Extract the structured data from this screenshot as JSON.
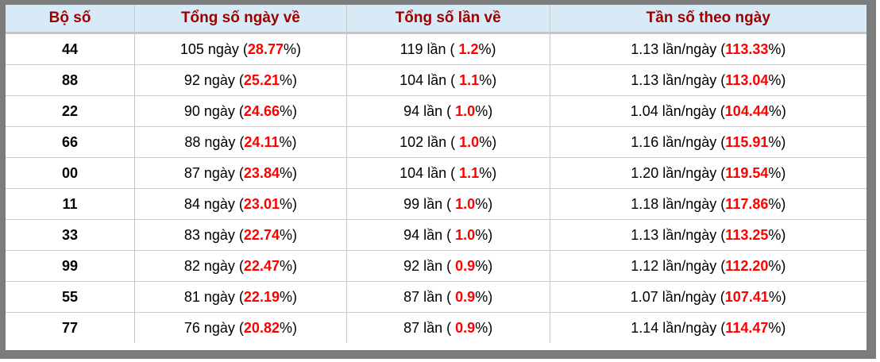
{
  "table": {
    "headers": [
      "Bộ số",
      "Tổng số ngày về",
      "Tổng số lần về",
      "Tần số theo ngày"
    ],
    "format": {
      "pct_prefix": " (",
      "pct_suffix": "%)"
    },
    "rows": [
      {
        "pair": "44",
        "days": "105 ngày",
        "days_pct": "28.77",
        "times": "119 lần",
        "times_pct": " 1.2",
        "freq": "1.13 lần/ngày",
        "freq_pct": "113.33"
      },
      {
        "pair": "88",
        "days": "92 ngày",
        "days_pct": "25.21",
        "times": "104 lần",
        "times_pct": " 1.1",
        "freq": "1.13 lần/ngày",
        "freq_pct": "113.04"
      },
      {
        "pair": "22",
        "days": "90 ngày",
        "days_pct": "24.66",
        "times": "94 lần",
        "times_pct": " 1.0",
        "freq": "1.04 lần/ngày",
        "freq_pct": "104.44"
      },
      {
        "pair": "66",
        "days": "88 ngày",
        "days_pct": "24.11",
        "times": "102 lần",
        "times_pct": " 1.0",
        "freq": "1.16 lần/ngày",
        "freq_pct": "115.91"
      },
      {
        "pair": "00",
        "days": "87 ngày",
        "days_pct": "23.84",
        "times": "104 lần",
        "times_pct": " 1.1",
        "freq": "1.20 lần/ngày",
        "freq_pct": "119.54"
      },
      {
        "pair": "11",
        "days": "84 ngày",
        "days_pct": "23.01",
        "times": "99 lần",
        "times_pct": " 1.0",
        "freq": "1.18 lần/ngày",
        "freq_pct": "117.86"
      },
      {
        "pair": "33",
        "days": "83 ngày",
        "days_pct": "22.74",
        "times": "94 lần",
        "times_pct": " 1.0",
        "freq": "1.13 lần/ngày",
        "freq_pct": "113.25"
      },
      {
        "pair": "99",
        "days": "82 ngày",
        "days_pct": "22.47",
        "times": "92 lần",
        "times_pct": " 0.9",
        "freq": "1.12 lần/ngày",
        "freq_pct": "112.20"
      },
      {
        "pair": "55",
        "days": "81 ngày",
        "days_pct": "22.19",
        "times": "87 lần",
        "times_pct": " 0.9",
        "freq": "1.07 lần/ngày",
        "freq_pct": "107.41"
      },
      {
        "pair": "77",
        "days": "76 ngày",
        "days_pct": "20.82",
        "times": "87 lần",
        "times_pct": " 0.9",
        "freq": "1.14 lần/ngày",
        "freq_pct": "114.47"
      }
    ]
  },
  "colors": {
    "header_bg": "#d8eaf6",
    "header_text": "#990000",
    "highlight_red": "#ff0000",
    "outer_border": "#7c7c7c",
    "grid_line": "#cccccc"
  }
}
